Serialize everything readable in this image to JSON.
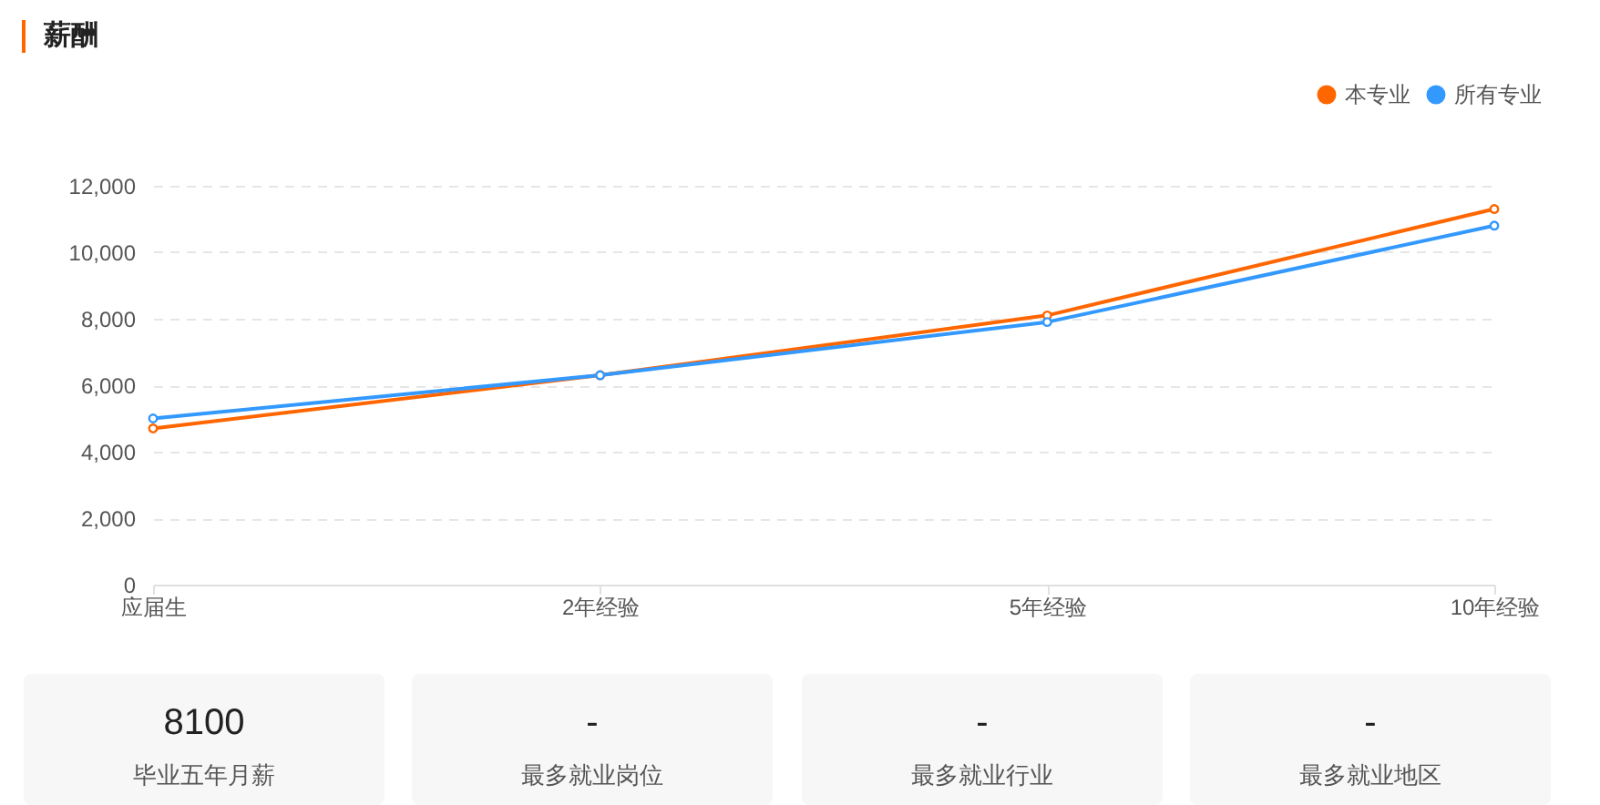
{
  "chart_data": [
    {
      "type": "line",
      "title": "薪酬",
      "categories": [
        "应届生",
        "2年经验",
        "5年经验",
        "10年经验"
      ],
      "series": [
        {
          "name": "本专业",
          "color": "#ff6600",
          "values": [
            4700,
            6300,
            8100,
            11300
          ]
        },
        {
          "name": "所有专业",
          "color": "#3399ff",
          "values": [
            5000,
            6300,
            7900,
            10800
          ]
        }
      ],
      "ylim": [
        0,
        12000
      ],
      "yticks": [
        0,
        {
          "value": 2000,
          "label": "2,000"
        },
        {
          "value": 4000,
          "label": "4,000"
        },
        {
          "value": 6000,
          "label": "6,000"
        },
        {
          "value": 8000,
          "label": "8,000"
        },
        {
          "value": 10000,
          "label": "10,000"
        },
        {
          "value": 12000,
          "label": "12,000"
        }
      ],
      "grid": "y",
      "legend": "top right",
      "marker": "circle",
      "line_style": "solid"
    },
    {
      "type": "other",
      "title": "8100",
      "subtitle": "毕业五年月薪"
    },
    {
      "type": "other",
      "title": "-",
      "subtitle": "最多就业岗位"
    },
    {
      "type": "other",
      "title": "-",
      "subtitle": "最多就业行业"
    },
    {
      "type": "other",
      "title": "-",
      "subtitle": "最多就业地区"
    }
  ]
}
